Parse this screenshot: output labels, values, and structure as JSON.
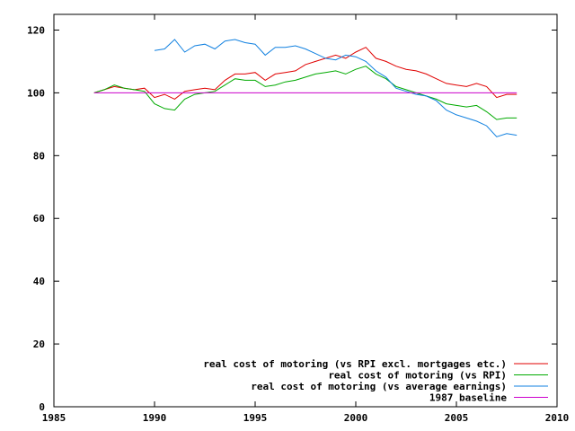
{
  "chart_data": {
    "type": "line",
    "title": "",
    "xlabel": "",
    "ylabel": "",
    "xlim": [
      1985,
      2010
    ],
    "ylim": [
      0,
      125
    ],
    "x_ticks": [
      1985,
      1990,
      1995,
      2000,
      2005,
      2010
    ],
    "y_ticks": [
      0,
      20,
      40,
      60,
      80,
      100,
      120
    ],
    "grid": false,
    "legend_position": "bottom-right",
    "series": [
      {
        "name": "real cost of motoring (vs RPI excl. mortgages etc.)",
        "color": "#e00000",
        "x": [
          1987.0,
          1987.5,
          1988.0,
          1988.5,
          1989.0,
          1989.5,
          1990.0,
          1990.5,
          1991.0,
          1991.5,
          1992.0,
          1992.5,
          1993.0,
          1993.5,
          1994.0,
          1994.5,
          1995.0,
          1995.5,
          1996.0,
          1996.5,
          1997.0,
          1997.5,
          1998.0,
          1998.5,
          1999.0,
          1999.5,
          2000.0,
          2000.5,
          2001.0,
          2001.5,
          2002.0,
          2002.5,
          2003.0,
          2003.5,
          2004.0,
          2004.5,
          2005.0,
          2005.5,
          2006.0,
          2006.5,
          2007.0,
          2007.5,
          2008.0
        ],
        "y": [
          100,
          101,
          102,
          101.5,
          101,
          101.5,
          98.5,
          99.5,
          98,
          100.5,
          101,
          101.5,
          101,
          104,
          106,
          106,
          106.5,
          104,
          106,
          106.5,
          107,
          109,
          110,
          111,
          112,
          111,
          113,
          114.5,
          111,
          110,
          108.5,
          107.5,
          107,
          106,
          104.5,
          103,
          102.5,
          102,
          103,
          102,
          98.5,
          99.5,
          99.5
        ]
      },
      {
        "name": "real cost of motoring (vs RPI)",
        "color": "#00aa00",
        "x": [
          1987.0,
          1987.5,
          1988.0,
          1988.5,
          1989.0,
          1989.5,
          1990.0,
          1990.5,
          1991.0,
          1991.5,
          1992.0,
          1992.5,
          1993.0,
          1993.5,
          1994.0,
          1994.5,
          1995.0,
          1995.5,
          1996.0,
          1996.5,
          1997.0,
          1997.5,
          1998.0,
          1998.5,
          1999.0,
          1999.5,
          2000.0,
          2000.5,
          2001.0,
          2001.5,
          2002.0,
          2002.5,
          2003.0,
          2003.5,
          2004.0,
          2004.5,
          2005.0,
          2005.5,
          2006.0,
          2006.5,
          2007.0,
          2007.5,
          2008.0
        ],
        "y": [
          100,
          101,
          102.5,
          101.5,
          101,
          100.5,
          96.5,
          95,
          94.5,
          98,
          99.5,
          100,
          100.5,
          102.5,
          104.5,
          104,
          104,
          102,
          102.5,
          103.5,
          104,
          105,
          106,
          106.5,
          107,
          106,
          107.5,
          108.5,
          106,
          104.5,
          102,
          101,
          100,
          99,
          98,
          96.5,
          96,
          95.5,
          96,
          94,
          91.5,
          92,
          92
        ]
      },
      {
        "name": "real cost of motoring (vs average earnings)",
        "color": "#1080e0",
        "x": [
          1990.0,
          1990.5,
          1991.0,
          1991.5,
          1992.0,
          1992.5,
          1993.0,
          1993.5,
          1994.0,
          1994.5,
          1995.0,
          1995.5,
          1996.0,
          1996.5,
          1997.0,
          1997.5,
          1998.0,
          1998.5,
          1999.0,
          1999.5,
          2000.0,
          2000.5,
          2001.0,
          2001.5,
          2002.0,
          2002.5,
          2003.0,
          2003.5,
          2004.0,
          2004.5,
          2005.0,
          2005.5,
          2006.0,
          2006.5,
          2007.0,
          2007.5,
          2008.0
        ],
        "y": [
          113.5,
          114,
          117,
          113,
          115,
          115.5,
          114,
          116.5,
          117,
          116,
          115.5,
          112,
          114.5,
          114.5,
          115,
          114,
          112.5,
          111,
          110.5,
          112,
          111.5,
          110,
          107,
          105,
          101.5,
          100.5,
          99.5,
          99,
          97.5,
          94.5,
          93,
          92,
          91,
          89.5,
          86,
          87,
          86.5
        ]
      },
      {
        "name": "1987 baseline",
        "color": "#cc00cc",
        "x": [
          1987.0,
          2008.0
        ],
        "y": [
          100,
          100
        ]
      }
    ]
  }
}
